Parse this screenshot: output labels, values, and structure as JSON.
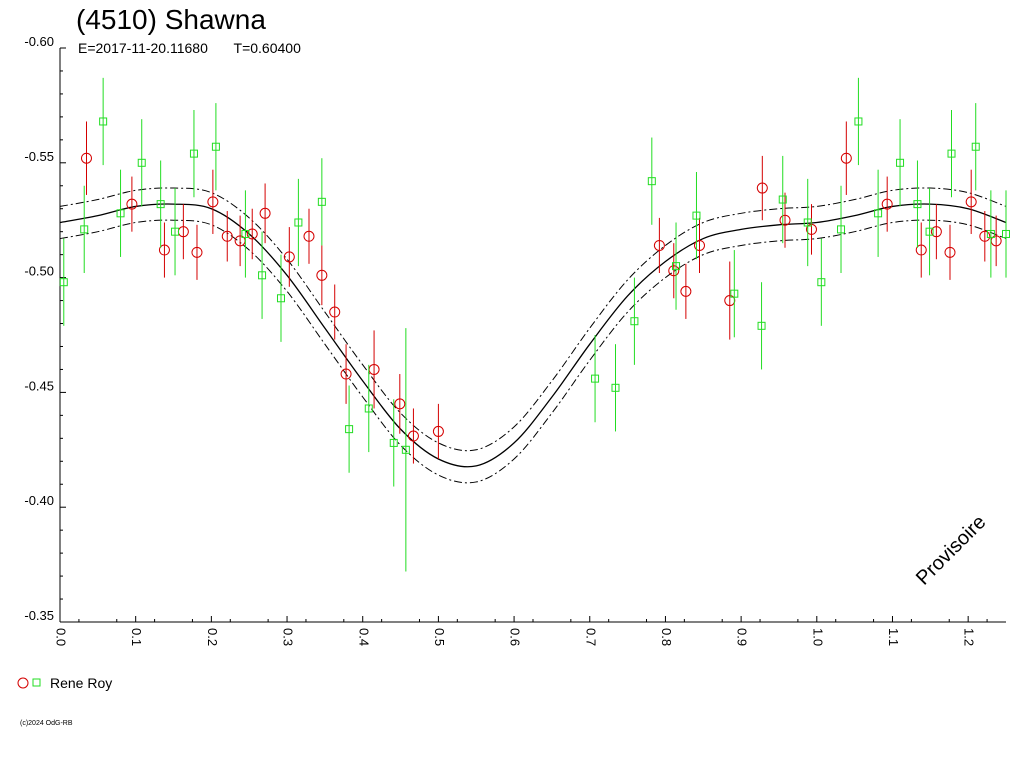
{
  "header": {
    "title": "(4510) Shawna",
    "epoch": "E=2017-11-20.11680",
    "period": "T=0.60400"
  },
  "legend": {
    "label": "Rene Roy"
  },
  "copyright": "(c)2024 OdG-RB",
  "stamp": "Provisoire",
  "colors": {
    "red": "#d40000",
    "green": "#22dd22",
    "curve": "#000000",
    "axis": "#000000"
  },
  "chart_data": {
    "type": "scatter",
    "xlim": [
      0.0,
      1.25
    ],
    "ylim": [
      -0.6,
      -0.35
    ],
    "x_ticks": [
      "0.0",
      "0.1",
      "0.2",
      "0.3",
      "0.4",
      "0.5",
      "0.6",
      "0.7",
      "0.8",
      "0.9",
      "1.0",
      "1.1",
      "1.2"
    ],
    "y_ticks": [
      "-0.60",
      "-0.55",
      "-0.50",
      "-0.45",
      "-0.40",
      "-0.35"
    ],
    "y_tick_values": [
      -0.6,
      -0.55,
      -0.5,
      -0.45,
      -0.4,
      -0.35
    ],
    "fit_curve": {
      "x": [
        0.0,
        0.05,
        0.1,
        0.15,
        0.2,
        0.25,
        0.3,
        0.35,
        0.4,
        0.45,
        0.5,
        0.55,
        0.6,
        0.65,
        0.7,
        0.75,
        0.8,
        0.85,
        0.9,
        0.95,
        1.0,
        1.05,
        1.1,
        1.15,
        1.2,
        1.25
      ],
      "y": [
        -0.524,
        -0.527,
        -0.531,
        -0.532,
        -0.53,
        -0.519,
        -0.501,
        -0.478,
        -0.455,
        -0.434,
        -0.421,
        -0.418,
        -0.428,
        -0.448,
        -0.471,
        -0.492,
        -0.507,
        -0.517,
        -0.521,
        -0.523,
        -0.524,
        -0.527,
        -0.531,
        -0.532,
        -0.53,
        -0.524
      ]
    },
    "band_width": 0.007,
    "series": [
      {
        "name": "Rene Roy",
        "marker": "circle",
        "color": "red",
        "x": [
          0.035,
          0.095,
          0.138,
          0.163,
          0.181,
          0.202,
          0.221,
          0.238,
          0.254,
          0.271,
          0.303,
          0.329,
          0.346,
          0.363,
          0.378,
          0.415,
          0.449,
          0.467,
          0.5,
          0.792,
          0.811,
          0.827,
          0.845,
          0.885,
          0.928,
          0.958,
          0.993,
          1.039,
          1.093,
          1.138,
          1.158,
          1.176,
          1.204,
          1.222,
          1.237
        ],
        "y": [
          -0.552,
          -0.532,
          -0.512,
          -0.52,
          -0.511,
          -0.533,
          -0.518,
          -0.516,
          -0.519,
          -0.528,
          -0.509,
          -0.518,
          -0.501,
          -0.485,
          -0.458,
          -0.46,
          -0.445,
          -0.431,
          -0.433,
          -0.514,
          -0.503,
          -0.494,
          -0.514,
          -0.49,
          -0.539,
          -0.525,
          -0.521,
          -0.552,
          -0.532,
          -0.512,
          -0.52,
          -0.511,
          -0.533,
          -0.518,
          -0.516
        ],
        "err": [
          0.016,
          0.012,
          0.012,
          0.012,
          0.012,
          0.014,
          0.011,
          0.011,
          0.011,
          0.013,
          0.013,
          0.012,
          0.013,
          0.012,
          0.013,
          0.017,
          0.013,
          0.012,
          0.012,
          0.012,
          0.012,
          0.012,
          0.012,
          0.017,
          0.014,
          0.012,
          0.011,
          0.016,
          0.012,
          0.012,
          0.012,
          0.012,
          0.014,
          0.011,
          0.011
        ]
      },
      {
        "name": "Rene Roy",
        "marker": "square",
        "color": "green",
        "x": [
          0.005,
          0.032,
          0.057,
          0.08,
          0.108,
          0.133,
          0.152,
          0.177,
          0.206,
          0.245,
          0.267,
          0.292,
          0.315,
          0.346,
          0.382,
          0.408,
          0.441,
          0.457,
          0.707,
          0.734,
          0.759,
          0.782,
          0.814,
          0.841,
          0.891,
          0.927,
          0.955,
          0.988,
          1.006,
          1.032,
          1.055,
          1.081,
          1.11,
          1.133,
          1.149,
          1.178,
          1.21,
          1.23,
          1.25
        ],
        "y": [
          -0.498,
          -0.521,
          -0.568,
          -0.528,
          -0.55,
          -0.532,
          -0.52,
          -0.554,
          -0.557,
          -0.519,
          -0.501,
          -0.491,
          -0.524,
          -0.533,
          -0.434,
          -0.443,
          -0.428,
          -0.425,
          -0.456,
          -0.452,
          -0.481,
          -0.542,
          -0.505,
          -0.527,
          -0.493,
          -0.479,
          -0.534,
          -0.524,
          -0.498,
          -0.521,
          -0.568,
          -0.528,
          -0.55,
          -0.532,
          -0.52,
          -0.554,
          -0.557,
          -0.519,
          -0.519
        ],
        "err": [
          0.019,
          0.019,
          0.019,
          0.019,
          0.019,
          0.019,
          0.019,
          0.019,
          0.019,
          0.019,
          0.019,
          0.019,
          0.019,
          0.019,
          0.019,
          0.019,
          0.019,
          0.053,
          0.019,
          0.019,
          0.019,
          0.019,
          0.019,
          0.019,
          0.019,
          0.019,
          0.019,
          0.019,
          0.019,
          0.019,
          0.019,
          0.019,
          0.019,
          0.019,
          0.019,
          0.019,
          0.019,
          0.019,
          0.019
        ]
      }
    ]
  }
}
